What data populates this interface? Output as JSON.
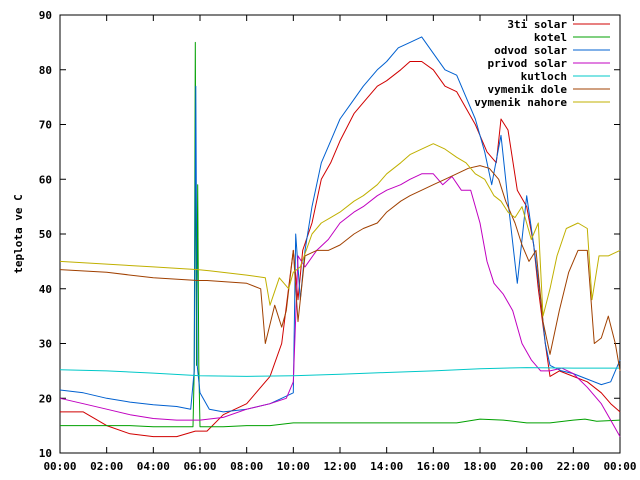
{
  "chart_data": {
    "type": "line",
    "title": "",
    "xlabel": "",
    "ylabel": "teplota ve C",
    "xlim": [
      "00:00",
      "24:00"
    ],
    "ylim": [
      10,
      90
    ],
    "x_ticks": [
      "00:00",
      "02:00",
      "04:00",
      "06:00",
      "08:00",
      "10:00",
      "12:00",
      "14:00",
      "16:00",
      "18:00",
      "20:00",
      "22:00",
      "00:00"
    ],
    "y_ticks": [
      "10",
      "20",
      "30",
      "40",
      "50",
      "60",
      "70",
      "80",
      "90"
    ],
    "grid": false,
    "legend_position": "top-right",
    "series": [
      {
        "name": "3ti solar",
        "color": "#d00000",
        "points": [
          [
            0,
            17.5
          ],
          [
            1,
            17.5
          ],
          [
            2,
            15
          ],
          [
            3,
            13.5
          ],
          [
            4,
            13
          ],
          [
            5,
            13
          ],
          [
            5.8,
            14
          ],
          [
            6.3,
            14
          ],
          [
            7,
            17
          ],
          [
            8,
            19
          ],
          [
            9,
            24
          ],
          [
            9.5,
            30
          ],
          [
            10,
            47
          ],
          [
            10.2,
            38
          ],
          [
            10.4,
            47
          ],
          [
            10.8,
            52
          ],
          [
            11.2,
            60
          ],
          [
            11.6,
            63
          ],
          [
            12,
            67
          ],
          [
            12.6,
            72
          ],
          [
            13,
            74
          ],
          [
            13.6,
            77
          ],
          [
            14,
            78
          ],
          [
            14.6,
            80
          ],
          [
            15,
            81.5
          ],
          [
            15.5,
            81.5
          ],
          [
            16,
            80
          ],
          [
            16.5,
            77
          ],
          [
            17,
            76
          ],
          [
            17.4,
            73
          ],
          [
            17.8,
            70
          ],
          [
            18.3,
            65
          ],
          [
            18.7,
            63
          ],
          [
            18.9,
            71
          ],
          [
            19.2,
            69
          ],
          [
            19.6,
            58
          ],
          [
            20,
            55
          ],
          [
            20.3,
            48
          ],
          [
            20.5,
            40
          ],
          [
            20.8,
            30
          ],
          [
            21,
            24
          ],
          [
            21.4,
            25
          ],
          [
            22,
            24
          ],
          [
            22.6,
            23
          ],
          [
            23.2,
            21
          ],
          [
            23.6,
            19
          ],
          [
            24,
            17.5
          ]
        ]
      },
      {
        "name": "kotel",
        "color": "#00a000",
        "points": [
          [
            0,
            15
          ],
          [
            1.5,
            15
          ],
          [
            3,
            15
          ],
          [
            4,
            14.8
          ],
          [
            5.7,
            14.8
          ],
          [
            5.75,
            25
          ],
          [
            5.8,
            85
          ],
          [
            5.85,
            26
          ],
          [
            5.9,
            59
          ],
          [
            5.95,
            26
          ],
          [
            6,
            14.8
          ],
          [
            7,
            14.8
          ],
          [
            8,
            15
          ],
          [
            9,
            15
          ],
          [
            10,
            15.5
          ],
          [
            11,
            15.5
          ],
          [
            12,
            15.5
          ],
          [
            13,
            15.5
          ],
          [
            14,
            15.5
          ],
          [
            15,
            15.5
          ],
          [
            16,
            15.5
          ],
          [
            17,
            15.5
          ],
          [
            18,
            16.2
          ],
          [
            19,
            16
          ],
          [
            20,
            15.5
          ],
          [
            21,
            15.5
          ],
          [
            22,
            16
          ],
          [
            22.5,
            16.2
          ],
          [
            23,
            15.8
          ],
          [
            24,
            16
          ]
        ]
      },
      {
        "name": "odvod solar",
        "color": "#0060d0",
        "points": [
          [
            0,
            21.5
          ],
          [
            1,
            21
          ],
          [
            2,
            20
          ],
          [
            3,
            19.3
          ],
          [
            4,
            18.8
          ],
          [
            5,
            18.5
          ],
          [
            5.6,
            18
          ],
          [
            5.75,
            25
          ],
          [
            5.82,
            77
          ],
          [
            5.88,
            26
          ],
          [
            6,
            21
          ],
          [
            6.4,
            18
          ],
          [
            7,
            17.5
          ],
          [
            8,
            18
          ],
          [
            9,
            19
          ],
          [
            9.5,
            20
          ],
          [
            10,
            21
          ],
          [
            10.1,
            50
          ],
          [
            10.3,
            38
          ],
          [
            10.5,
            47
          ],
          [
            10.8,
            55
          ],
          [
            11.2,
            63
          ],
          [
            11.6,
            67
          ],
          [
            12,
            71
          ],
          [
            12.5,
            74
          ],
          [
            13,
            77
          ],
          [
            13.6,
            80
          ],
          [
            14,
            81.5
          ],
          [
            14.5,
            84
          ],
          [
            15,
            85
          ],
          [
            15.5,
            86
          ],
          [
            16,
            83
          ],
          [
            16.5,
            80
          ],
          [
            17,
            79
          ],
          [
            17.4,
            75
          ],
          [
            17.8,
            71
          ],
          [
            18.2,
            65
          ],
          [
            18.5,
            59
          ],
          [
            18.9,
            68
          ],
          [
            19.2,
            56
          ],
          [
            19.6,
            41
          ],
          [
            20,
            57
          ],
          [
            20.3,
            48
          ],
          [
            20.6,
            38
          ],
          [
            20.8,
            30
          ],
          [
            21,
            26
          ],
          [
            21.5,
            25
          ],
          [
            22,
            24.5
          ],
          [
            22.6,
            23.5
          ],
          [
            23.2,
            22.5
          ],
          [
            23.6,
            23
          ],
          [
            24,
            27
          ]
        ]
      },
      {
        "name": "privod solar",
        "color": "#c000c0",
        "points": [
          [
            0,
            20
          ],
          [
            1,
            19
          ],
          [
            2,
            18
          ],
          [
            3,
            17
          ],
          [
            4,
            16.3
          ],
          [
            5,
            16
          ],
          [
            6,
            16
          ],
          [
            7,
            16.5
          ],
          [
            8,
            18
          ],
          [
            9,
            19
          ],
          [
            9.7,
            20
          ],
          [
            10,
            23
          ],
          [
            10.2,
            46
          ],
          [
            10.5,
            44
          ],
          [
            11,
            47
          ],
          [
            11.5,
            49
          ],
          [
            12,
            52
          ],
          [
            12.6,
            54
          ],
          [
            13,
            55
          ],
          [
            13.6,
            57
          ],
          [
            14,
            58
          ],
          [
            14.6,
            59
          ],
          [
            15,
            60
          ],
          [
            15.5,
            61
          ],
          [
            16,
            61
          ],
          [
            16.4,
            59
          ],
          [
            16.8,
            60.5
          ],
          [
            17.2,
            58
          ],
          [
            17.6,
            58
          ],
          [
            18,
            52
          ],
          [
            18.3,
            45
          ],
          [
            18.6,
            41
          ],
          [
            19,
            39
          ],
          [
            19.4,
            36
          ],
          [
            19.8,
            30
          ],
          [
            20.2,
            27
          ],
          [
            20.6,
            25
          ],
          [
            21,
            25
          ],
          [
            21.5,
            25.5
          ],
          [
            22,
            24.5
          ],
          [
            22.6,
            22
          ],
          [
            23.2,
            19
          ],
          [
            23.6,
            16
          ],
          [
            24,
            13
          ]
        ]
      },
      {
        "name": "kutloch",
        "color": "#00c8c8",
        "points": [
          [
            0,
            25.2
          ],
          [
            2,
            25
          ],
          [
            4,
            24.6
          ],
          [
            6,
            24.1
          ],
          [
            8,
            24
          ],
          [
            10,
            24.1
          ],
          [
            12,
            24.4
          ],
          [
            14,
            24.7
          ],
          [
            16,
            25
          ],
          [
            18,
            25.4
          ],
          [
            20,
            25.6
          ],
          [
            22,
            25.5
          ],
          [
            24,
            25.5
          ]
        ]
      },
      {
        "name": "vymenik dole",
        "color": "#a04000",
        "points": [
          [
            0,
            43.5
          ],
          [
            2,
            43
          ],
          [
            4,
            42
          ],
          [
            5.9,
            41.5
          ],
          [
            6.3,
            41.5
          ],
          [
            8,
            41
          ],
          [
            8.6,
            40
          ],
          [
            8.8,
            30
          ],
          [
            9.2,
            37
          ],
          [
            9.5,
            33
          ],
          [
            9.7,
            36
          ],
          [
            10,
            47
          ],
          [
            10.2,
            34
          ],
          [
            10.5,
            46
          ],
          [
            11,
            47
          ],
          [
            11.5,
            47
          ],
          [
            12,
            48
          ],
          [
            12.6,
            50
          ],
          [
            13,
            51
          ],
          [
            13.6,
            52
          ],
          [
            14,
            54
          ],
          [
            14.6,
            56
          ],
          [
            15,
            57
          ],
          [
            15.5,
            58
          ],
          [
            16,
            59
          ],
          [
            16.5,
            60
          ],
          [
            17,
            61
          ],
          [
            17.5,
            62
          ],
          [
            18,
            62.5
          ],
          [
            18.4,
            62
          ],
          [
            18.8,
            60
          ],
          [
            19.1,
            56
          ],
          [
            19.5,
            52
          ],
          [
            19.8,
            48
          ],
          [
            20.1,
            45
          ],
          [
            20.4,
            47
          ],
          [
            20.7,
            34
          ],
          [
            21,
            28
          ],
          [
            21.4,
            36
          ],
          [
            21.8,
            43
          ],
          [
            22.2,
            47
          ],
          [
            22.6,
            47
          ],
          [
            22.9,
            30
          ],
          [
            23.2,
            31
          ],
          [
            23.5,
            35
          ],
          [
            23.8,
            30
          ],
          [
            24,
            25
          ]
        ]
      },
      {
        "name": "vymenik nahore",
        "color": "#c0b000",
        "points": [
          [
            0,
            45
          ],
          [
            2,
            44.5
          ],
          [
            4,
            44
          ],
          [
            5.9,
            43.5
          ],
          [
            6.4,
            43.3
          ],
          [
            8,
            42.5
          ],
          [
            8.8,
            42
          ],
          [
            9,
            37
          ],
          [
            9.4,
            42
          ],
          [
            9.8,
            40
          ],
          [
            10,
            43
          ],
          [
            10.3,
            44
          ],
          [
            10.8,
            50
          ],
          [
            11.2,
            52
          ],
          [
            11.6,
            53
          ],
          [
            12,
            54
          ],
          [
            12.6,
            56
          ],
          [
            13,
            57
          ],
          [
            13.6,
            59
          ],
          [
            14,
            61
          ],
          [
            14.6,
            63
          ],
          [
            15,
            64.5
          ],
          [
            15.5,
            65.5
          ],
          [
            16,
            66.5
          ],
          [
            16.5,
            65.5
          ],
          [
            17,
            64
          ],
          [
            17.4,
            63
          ],
          [
            17.8,
            61
          ],
          [
            18.2,
            60
          ],
          [
            18.6,
            57
          ],
          [
            18.9,
            56
          ],
          [
            19.2,
            54
          ],
          [
            19.5,
            53
          ],
          [
            19.8,
            55
          ],
          [
            20.2,
            49
          ],
          [
            20.5,
            52
          ],
          [
            20.7,
            35
          ],
          [
            21,
            40
          ],
          [
            21.3,
            46
          ],
          [
            21.7,
            51
          ],
          [
            22.2,
            52
          ],
          [
            22.6,
            51
          ],
          [
            22.8,
            38
          ],
          [
            23.1,
            46
          ],
          [
            23.5,
            46
          ],
          [
            24,
            47
          ]
        ]
      }
    ]
  }
}
